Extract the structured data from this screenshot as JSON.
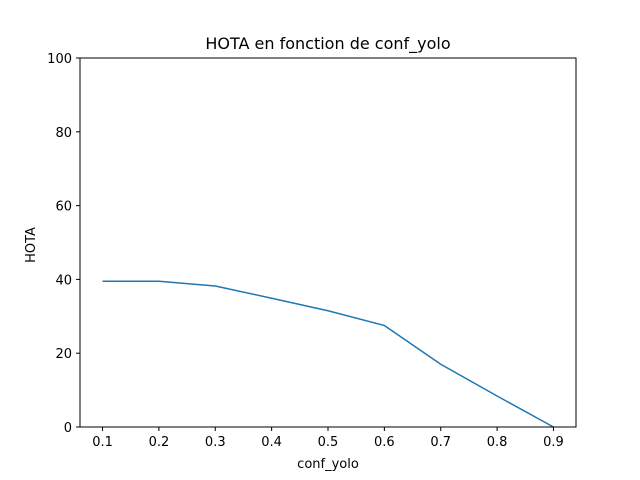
{
  "chart_data": {
    "type": "line",
    "title": "HOTA en fonction de conf_yolo",
    "xlabel": "conf_yolo",
    "ylabel": "HOTA",
    "x": [
      0.1,
      0.2,
      0.3,
      0.4,
      0.5,
      0.6,
      0.7,
      0.8,
      0.9
    ],
    "series": [
      {
        "values": [
          39.5,
          39.5,
          38.2,
          34.9,
          31.5,
          27.5,
          17.0,
          8.4,
          0.0
        ],
        "color": "#1f77b4"
      }
    ],
    "xticks": [
      "0.1",
      "0.2",
      "0.3",
      "0.4",
      "0.5",
      "0.6",
      "0.7",
      "0.8",
      "0.9"
    ],
    "yticks": [
      "0",
      "20",
      "40",
      "60",
      "80",
      "100"
    ],
    "xlim": [
      0.06,
      0.94
    ],
    "ylim": [
      0,
      100
    ],
    "grid": false,
    "legend": false
  }
}
